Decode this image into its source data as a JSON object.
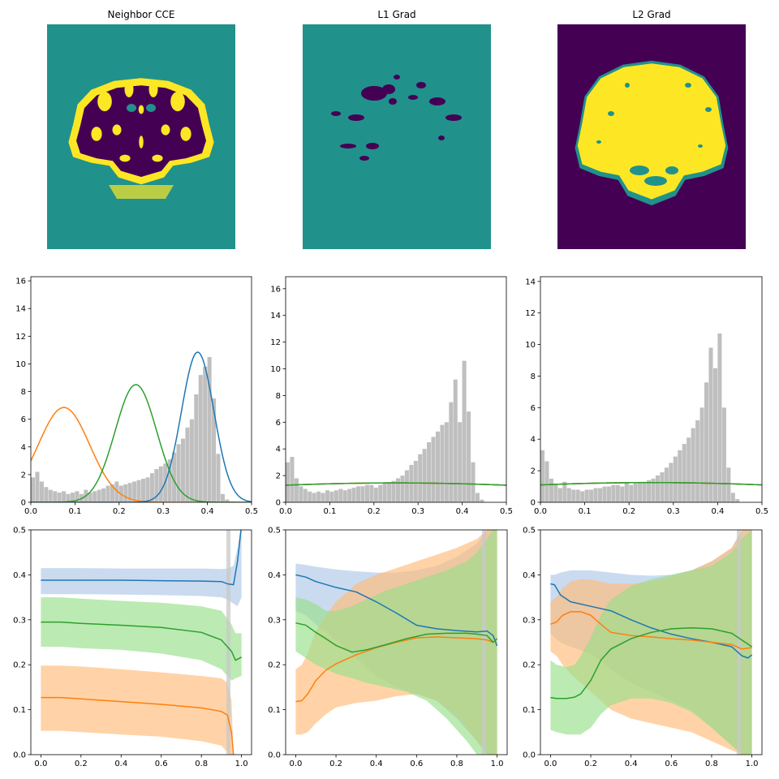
{
  "colors": {
    "viridis_dark": "#440154",
    "viridis_mid": "#21918c",
    "viridis_light": "#fde725",
    "blue": "#1f77b4",
    "orange": "#ff7f0e",
    "green": "#2ca02c",
    "hist_gray": "#bfbfbf",
    "fill_blue": "#aec7e8",
    "fill_orange": "#ffbb78",
    "fill_green": "#98df8a",
    "vline_gray": "#c8c8c8"
  },
  "chart_data": [
    {
      "type": "heatmap",
      "title": "Neighbor CCE",
      "colormap": "viridis",
      "axes": "off"
    },
    {
      "type": "heatmap",
      "title": "L1 Grad",
      "colormap": "viridis",
      "axes": "off"
    },
    {
      "type": "heatmap",
      "title": "L2 Grad",
      "colormap": "viridis",
      "axes": "off"
    },
    {
      "type": "histogram",
      "title": "",
      "xlim": [
        0,
        0.5
      ],
      "ylim": [
        0,
        16.3
      ],
      "xticks": [
        "0.0",
        "0.1",
        "0.2",
        "0.3",
        "0.4",
        "0.5"
      ],
      "yticks": [
        "0",
        "2",
        "4",
        "6",
        "8",
        "10",
        "12",
        "14",
        "16"
      ],
      "histogram": {
        "x": [
          0.0,
          0.01,
          0.02,
          0.03,
          0.04,
          0.05,
          0.06,
          0.07,
          0.08,
          0.09,
          0.1,
          0.11,
          0.12,
          0.13,
          0.14,
          0.15,
          0.16,
          0.17,
          0.18,
          0.19,
          0.2,
          0.21,
          0.22,
          0.23,
          0.24,
          0.25,
          0.26,
          0.27,
          0.28,
          0.29,
          0.3,
          0.31,
          0.32,
          0.33,
          0.34,
          0.35,
          0.36,
          0.37,
          0.38,
          0.39,
          0.4,
          0.41,
          0.42,
          0.43,
          0.44,
          0.45
        ],
        "y": [
          1.8,
          2.2,
          1.5,
          1.1,
          0.9,
          0.8,
          0.7,
          0.8,
          0.6,
          0.7,
          0.8,
          0.6,
          0.9,
          0.7,
          0.8,
          0.9,
          1.0,
          1.2,
          1.3,
          1.5,
          1.2,
          1.3,
          1.4,
          1.5,
          1.6,
          1.7,
          1.8,
          2.1,
          2.4,
          2.6,
          2.8,
          3.1,
          3.6,
          4.2,
          4.6,
          5.4,
          6.0,
          7.8,
          9.2,
          9.8,
          10.5,
          7.5,
          3.5,
          0.6,
          0.2,
          0.05
        ]
      },
      "series": [
        {
          "color": "orange",
          "kind": "gaussian",
          "mu": 0.075,
          "sigma": 0.0583,
          "amp": 6.85
        },
        {
          "color": "green",
          "kind": "gaussian",
          "mu": 0.238,
          "sigma": 0.047,
          "amp": 8.5
        },
        {
          "color": "blue",
          "kind": "gaussian",
          "mu": 0.378,
          "sigma": 0.0368,
          "amp": 10.85
        }
      ]
    },
    {
      "type": "histogram",
      "title": "",
      "xlim": [
        0,
        0.5
      ],
      "ylim": [
        0,
        16.9
      ],
      "xticks": [
        "0.0",
        "0.1",
        "0.2",
        "0.3",
        "0.4",
        "0.5"
      ],
      "yticks": [
        "0",
        "2",
        "4",
        "6",
        "8",
        "10",
        "12",
        "14",
        "16"
      ],
      "histogram": {
        "x": [
          0.0,
          0.01,
          0.02,
          0.03,
          0.04,
          0.05,
          0.06,
          0.07,
          0.08,
          0.09,
          0.1,
          0.11,
          0.12,
          0.13,
          0.14,
          0.15,
          0.16,
          0.17,
          0.18,
          0.19,
          0.2,
          0.21,
          0.22,
          0.23,
          0.24,
          0.25,
          0.26,
          0.27,
          0.28,
          0.29,
          0.3,
          0.31,
          0.32,
          0.33,
          0.34,
          0.35,
          0.36,
          0.37,
          0.38,
          0.39,
          0.4,
          0.41,
          0.42,
          0.43,
          0.44
        ],
        "y": [
          3.0,
          3.4,
          1.8,
          1.2,
          1.0,
          0.8,
          0.7,
          0.8,
          0.7,
          0.9,
          0.8,
          0.9,
          1.0,
          0.9,
          1.0,
          1.1,
          1.2,
          1.2,
          1.3,
          1.3,
          1.1,
          1.3,
          1.4,
          1.5,
          1.6,
          1.8,
          2.0,
          2.4,
          2.8,
          3.1,
          3.6,
          4.0,
          4.5,
          4.9,
          5.3,
          5.8,
          6.0,
          7.5,
          9.2,
          6.0,
          10.6,
          6.8,
          3.0,
          0.7,
          0.2
        ]
      },
      "series": [
        {
          "color": "blue",
          "kind": "gaussian",
          "mu": 0.25,
          "sigma": 0.5,
          "amp": 1.45
        },
        {
          "color": "orange",
          "kind": "gaussian",
          "mu": 0.25,
          "sigma": 0.5,
          "amp": 1.45
        },
        {
          "color": "green",
          "kind": "gaussian",
          "mu": 0.25,
          "sigma": 0.5,
          "amp": 1.45
        }
      ]
    },
    {
      "type": "histogram",
      "title": "",
      "xlim": [
        0,
        0.5
      ],
      "ylim": [
        0,
        14.3
      ],
      "xticks": [
        "0.0",
        "0.1",
        "0.2",
        "0.3",
        "0.4",
        "0.5"
      ],
      "yticks": [
        "0",
        "2",
        "4",
        "6",
        "8",
        "10",
        "12",
        "14"
      ],
      "histogram": {
        "x": [
          0.0,
          0.01,
          0.02,
          0.03,
          0.04,
          0.05,
          0.06,
          0.07,
          0.08,
          0.09,
          0.1,
          0.11,
          0.12,
          0.13,
          0.14,
          0.15,
          0.16,
          0.17,
          0.18,
          0.19,
          0.2,
          0.21,
          0.22,
          0.23,
          0.24,
          0.25,
          0.26,
          0.27,
          0.28,
          0.29,
          0.3,
          0.31,
          0.32,
          0.33,
          0.34,
          0.35,
          0.36,
          0.37,
          0.38,
          0.39,
          0.4,
          0.41,
          0.42,
          0.43,
          0.44
        ],
        "y": [
          3.3,
          2.6,
          1.5,
          1.1,
          0.9,
          1.3,
          0.9,
          0.8,
          0.8,
          0.7,
          0.8,
          0.8,
          0.9,
          0.9,
          1.0,
          1.0,
          1.1,
          1.1,
          1.0,
          1.2,
          1.1,
          1.2,
          1.3,
          1.3,
          1.4,
          1.5,
          1.7,
          1.9,
          2.2,
          2.5,
          2.9,
          3.3,
          3.7,
          4.1,
          4.7,
          5.2,
          6.0,
          7.6,
          9.8,
          8.5,
          10.7,
          6.0,
          2.2,
          0.6,
          0.2
        ]
      },
      "series": [
        {
          "color": "blue",
          "kind": "gaussian",
          "mu": 0.25,
          "sigma": 0.5,
          "amp": 1.25
        },
        {
          "color": "orange",
          "kind": "gaussian",
          "mu": 0.25,
          "sigma": 0.5,
          "amp": 1.25
        },
        {
          "color": "green",
          "kind": "gaussian",
          "mu": 0.25,
          "sigma": 0.5,
          "amp": 1.25
        }
      ]
    },
    {
      "type": "line",
      "title": "",
      "xlim": [
        -0.05,
        1.05
      ],
      "ylim": [
        0,
        0.5
      ],
      "xticks": [
        "0.0",
        "0.2",
        "0.4",
        "0.6",
        "0.8",
        "1.0"
      ],
      "yticks": [
        "0.0",
        "0.1",
        "0.2",
        "0.3",
        "0.4",
        "0.5"
      ],
      "vline": 0.935,
      "series": [
        {
          "color": "blue",
          "x": [
            0,
            0.2,
            0.4,
            0.6,
            0.8,
            0.9,
            0.93,
            0.96,
            0.98,
            1.0
          ],
          "y": [
            0.388,
            0.388,
            0.388,
            0.387,
            0.386,
            0.385,
            0.38,
            0.378,
            0.43,
            0.51
          ],
          "lower": [
            0.357,
            0.357,
            0.356,
            0.355,
            0.353,
            0.35,
            0.345,
            0.336,
            0.33,
            0.35
          ],
          "upper": [
            0.415,
            0.415,
            0.414,
            0.414,
            0.414,
            0.413,
            0.414,
            0.42,
            0.46,
            0.52
          ]
        },
        {
          "color": "orange",
          "x": [
            0,
            0.1,
            0.2,
            0.4,
            0.6,
            0.8,
            0.9,
            0.93,
            0.95,
            0.96
          ],
          "y": [
            0.127,
            0.127,
            0.124,
            0.118,
            0.112,
            0.104,
            0.096,
            0.088,
            0.05,
            0.0
          ],
          "lower": [
            0.053,
            0.053,
            0.05,
            0.045,
            0.04,
            0.03,
            0.02,
            0.005,
            0,
            0
          ],
          "upper": [
            0.198,
            0.198,
            0.196,
            0.19,
            0.183,
            0.175,
            0.17,
            0.16,
            0.12,
            0.0
          ]
        },
        {
          "color": "green",
          "x": [
            0,
            0.1,
            0.2,
            0.4,
            0.6,
            0.8,
            0.9,
            0.95,
            0.97,
            1.0
          ],
          "y": [
            0.295,
            0.295,
            0.292,
            0.288,
            0.283,
            0.272,
            0.255,
            0.23,
            0.21,
            0.217
          ],
          "lower": [
            0.24,
            0.24,
            0.237,
            0.233,
            0.225,
            0.21,
            0.19,
            0.165,
            0.17,
            0.175
          ],
          "upper": [
            0.35,
            0.35,
            0.347,
            0.342,
            0.338,
            0.33,
            0.32,
            0.29,
            0.27,
            0.27
          ]
        }
      ]
    },
    {
      "type": "line",
      "title": "",
      "xlim": [
        -0.05,
        1.05
      ],
      "ylim": [
        0,
        0.5
      ],
      "xticks": [
        "0.0",
        "0.2",
        "0.4",
        "0.6",
        "0.8",
        "1.0"
      ],
      "yticks": [
        "0.0",
        "0.1",
        "0.2",
        "0.3",
        "0.4",
        "0.5"
      ],
      "vline": 0.935,
      "series": [
        {
          "color": "blue",
          "x": [
            0,
            0.05,
            0.1,
            0.2,
            0.3,
            0.4,
            0.5,
            0.6,
            0.7,
            0.8,
            0.9,
            0.95,
            0.98,
            1.0
          ],
          "y": [
            0.4,
            0.395,
            0.385,
            0.372,
            0.362,
            0.34,
            0.315,
            0.288,
            0.28,
            0.276,
            0.273,
            0.275,
            0.265,
            0.242
          ],
          "lower": [
            0.32,
            0.31,
            0.29,
            0.255,
            0.215,
            0.175,
            0.15,
            0.135,
            0.12,
            0.08,
            0.03,
            0,
            0,
            0
          ],
          "upper": [
            0.425,
            0.422,
            0.418,
            0.412,
            0.408,
            0.405,
            0.405,
            0.41,
            0.42,
            0.44,
            0.47,
            0.5,
            0.5,
            0.5
          ]
        },
        {
          "color": "orange",
          "x": [
            0,
            0.03,
            0.06,
            0.1,
            0.15,
            0.2,
            0.3,
            0.4,
            0.5,
            0.6,
            0.7,
            0.8,
            0.9,
            0.95,
            0.98,
            1.0
          ],
          "y": [
            0.118,
            0.12,
            0.135,
            0.165,
            0.188,
            0.202,
            0.222,
            0.238,
            0.25,
            0.26,
            0.262,
            0.26,
            0.258,
            0.255,
            0.25,
            0.258
          ],
          "lower": [
            0.045,
            0.045,
            0.05,
            0.07,
            0.09,
            0.105,
            0.115,
            0.12,
            0.13,
            0.135,
            0.12,
            0.085,
            0.03,
            0,
            0,
            0
          ],
          "upper": [
            0.19,
            0.2,
            0.225,
            0.275,
            0.31,
            0.34,
            0.38,
            0.4,
            0.415,
            0.43,
            0.445,
            0.46,
            0.48,
            0.5,
            0.5,
            0.5
          ]
        },
        {
          "color": "green",
          "x": [
            0,
            0.05,
            0.1,
            0.15,
            0.2,
            0.28,
            0.35,
            0.45,
            0.55,
            0.65,
            0.75,
            0.85,
            0.9,
            0.95,
            0.98,
            1.0
          ],
          "y": [
            0.293,
            0.288,
            0.272,
            0.258,
            0.243,
            0.228,
            0.233,
            0.245,
            0.258,
            0.268,
            0.27,
            0.27,
            0.268,
            0.265,
            0.25,
            0.258
          ],
          "lower": [
            0.23,
            0.215,
            0.2,
            0.19,
            0.18,
            0.17,
            0.16,
            0.15,
            0.14,
            0.12,
            0.08,
            0.03,
            0,
            0,
            0,
            0
          ],
          "upper": [
            0.35,
            0.345,
            0.335,
            0.32,
            0.32,
            0.33,
            0.345,
            0.365,
            0.38,
            0.395,
            0.41,
            0.43,
            0.45,
            0.48,
            0.5,
            0.5
          ]
        }
      ]
    },
    {
      "type": "line",
      "title": "",
      "xlim": [
        -0.05,
        1.05
      ],
      "ylim": [
        0,
        0.5
      ],
      "xticks": [
        "0.0",
        "0.2",
        "0.4",
        "0.6",
        "0.8",
        "1.0"
      ],
      "yticks": [
        "0.0",
        "0.1",
        "0.2",
        "0.3",
        "0.4",
        "0.5"
      ],
      "vline": 0.935,
      "series": [
        {
          "color": "blue",
          "x": [
            0,
            0.02,
            0.05,
            0.1,
            0.2,
            0.3,
            0.4,
            0.5,
            0.6,
            0.7,
            0.8,
            0.9,
            0.95,
            0.98,
            1.0
          ],
          "y": [
            0.38,
            0.378,
            0.355,
            0.34,
            0.33,
            0.32,
            0.3,
            0.282,
            0.268,
            0.258,
            0.25,
            0.24,
            0.22,
            0.215,
            0.222
          ],
          "lower": [
            0.27,
            0.26,
            0.25,
            0.24,
            0.225,
            0.19,
            0.16,
            0.14,
            0.12,
            0.1,
            0.06,
            0.02,
            0,
            0,
            0
          ],
          "upper": [
            0.4,
            0.4,
            0.405,
            0.41,
            0.41,
            0.405,
            0.4,
            0.398,
            0.4,
            0.41,
            0.43,
            0.46,
            0.5,
            0.5,
            0.5
          ]
        },
        {
          "color": "orange",
          "x": [
            0,
            0.03,
            0.06,
            0.1,
            0.15,
            0.2,
            0.25,
            0.3,
            0.4,
            0.5,
            0.6,
            0.7,
            0.8,
            0.9,
            0.95,
            1.0
          ],
          "y": [
            0.29,
            0.295,
            0.31,
            0.318,
            0.318,
            0.31,
            0.29,
            0.272,
            0.265,
            0.262,
            0.258,
            0.255,
            0.25,
            0.245,
            0.235,
            0.238
          ],
          "lower": [
            0.23,
            0.22,
            0.2,
            0.18,
            0.16,
            0.14,
            0.12,
            0.1,
            0.08,
            0.07,
            0.06,
            0.05,
            0.03,
            0.01,
            0,
            0
          ],
          "upper": [
            0.34,
            0.35,
            0.37,
            0.385,
            0.39,
            0.39,
            0.385,
            0.38,
            0.38,
            0.385,
            0.395,
            0.41,
            0.43,
            0.46,
            0.5,
            0.5
          ]
        },
        {
          "color": "green",
          "x": [
            0,
            0.03,
            0.08,
            0.12,
            0.15,
            0.2,
            0.25,
            0.3,
            0.4,
            0.5,
            0.6,
            0.7,
            0.8,
            0.9,
            0.95,
            1.0
          ],
          "y": [
            0.127,
            0.125,
            0.125,
            0.128,
            0.135,
            0.165,
            0.21,
            0.235,
            0.258,
            0.272,
            0.28,
            0.282,
            0.28,
            0.27,
            0.255,
            0.24
          ],
          "lower": [
            0.055,
            0.05,
            0.045,
            0.045,
            0.045,
            0.06,
            0.09,
            0.11,
            0.125,
            0.125,
            0.115,
            0.095,
            0.06,
            0.02,
            0,
            0
          ],
          "upper": [
            0.21,
            0.2,
            0.195,
            0.2,
            0.22,
            0.26,
            0.31,
            0.345,
            0.375,
            0.39,
            0.4,
            0.41,
            0.42,
            0.45,
            0.48,
            0.5
          ]
        }
      ]
    }
  ]
}
